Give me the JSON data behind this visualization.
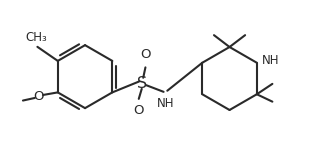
{
  "background_color": "#ffffff",
  "line_color": "#2a2a2a",
  "figsize": [
    3.22,
    1.57
  ],
  "dpi": 100,
  "bond_lw": 1.5,
  "font_size": 8.5,
  "xlim": [
    0.0,
    8.5
  ],
  "ylim": [
    0.0,
    4.2
  ]
}
